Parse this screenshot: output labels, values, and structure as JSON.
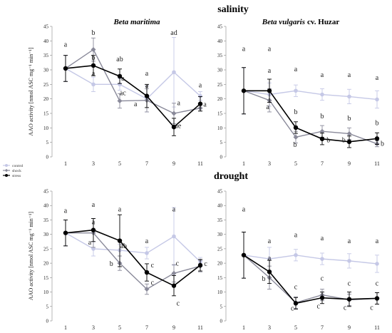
{
  "figure": {
    "sections": [
      "salinity",
      "drought"
    ]
  },
  "legend": [
    {
      "name": "control",
      "color": "#c5c8e6",
      "marker": "circle"
    },
    {
      "name": "shock",
      "color": "#8a8a9a",
      "marker": "diamond"
    },
    {
      "name": "stress",
      "color": "#000000",
      "marker": "circle"
    }
  ],
  "chart_data": [
    {
      "type": "line",
      "section": "salinity",
      "title": "Beta maritima",
      "title_roman": "",
      "ylabel": "AAO activity [nmol ASC mg⁻¹ min⁻¹]",
      "ylim": [
        0,
        45
      ],
      "yticks": [
        "0",
        "5",
        "10",
        "15",
        "20",
        "25",
        "30",
        "35",
        "40",
        "45"
      ],
      "x": [
        1,
        3,
        5,
        7,
        9,
        11
      ],
      "series": [
        {
          "name": "control",
          "values": [
            30.5,
            25,
            25,
            20,
            29.2,
            21
          ],
          "err": [
            4.5,
            2.5,
            2,
            4.5,
            12,
            1.5
          ]
        },
        {
          "name": "shock",
          "values": [
            30.5,
            37,
            19.3,
            19.5,
            15,
            16.8
          ],
          "err": [
            4.5,
            4,
            2.5,
            4,
            3.5,
            1
          ]
        },
        {
          "name": "stress",
          "values": [
            30.5,
            31.5,
            27.8,
            21,
            10.3,
            18.3
          ],
          "err": [
            4.5,
            3.5,
            2.5,
            4,
            3,
            2.5
          ]
        }
      ],
      "annotations": [
        {
          "text": "a",
          "x": 1,
          "y": 38
        },
        {
          "text": "b",
          "x": 3,
          "y": 42
        },
        {
          "text": "a",
          "x": 3,
          "y": 28
        },
        {
          "text": "b",
          "x": 3,
          "y": 33.5
        },
        {
          "text": "ab",
          "x": 5,
          "y": 33
        },
        {
          "text": "a",
          "x": 5.25,
          "y": 26.3
        },
        {
          "text": "ac",
          "x": 5.25,
          "y": 21.3
        },
        {
          "text": "a",
          "x": 7,
          "y": 28
        },
        {
          "text": "a",
          "x": 7,
          "y": 23.8
        },
        {
          "text": "a",
          "x": 6.2,
          "y": 17.5
        },
        {
          "text": "ad",
          "x": 9,
          "y": 42
        },
        {
          "text": "a",
          "x": 9.4,
          "y": 17.8
        },
        {
          "text": "ae",
          "x": 9.35,
          "y": 10
        },
        {
          "text": "a",
          "x": 11,
          "y": 24
        },
        {
          "text": "a",
          "x": 11.35,
          "y": 17.3
        }
      ]
    },
    {
      "type": "line",
      "section": "salinity",
      "title": "Beta vulgaris",
      "title_roman": "cv. Huzar",
      "ylabel": "",
      "ylim": [
        0,
        45
      ],
      "yticks": [
        "0",
        "5",
        "10",
        "15",
        "20",
        "25",
        "30",
        "35",
        "40",
        "45"
      ],
      "x": [
        1,
        3,
        5,
        7,
        9,
        11
      ],
      "series": [
        {
          "name": "control",
          "values": [
            22.8,
            21.5,
            22.8,
            21.5,
            20.8,
            19.8
          ],
          "err": [
            8,
            4,
            2,
            2,
            2.5,
            3
          ]
        },
        {
          "name": "shock",
          "values": [
            22.8,
            19.5,
            6.8,
            8.8,
            8,
            4.5
          ],
          "err": [
            8,
            4,
            2,
            2,
            2,
            1
          ]
        },
        {
          "name": "stress",
          "values": [
            22.8,
            22.8,
            10.1,
            6.2,
            5.2,
            6.3
          ],
          "err": [
            8,
            4,
            2,
            2,
            2,
            2
          ]
        }
      ],
      "annotations": [
        {
          "text": "a",
          "x": 1,
          "y": 36.5
        },
        {
          "text": "a",
          "x": 3,
          "y": 36.5
        },
        {
          "text": "a",
          "x": 3,
          "y": 29
        },
        {
          "text": "a",
          "x": 2.8,
          "y": 16.5
        },
        {
          "text": "a",
          "x": 5,
          "y": 29.5
        },
        {
          "text": "b",
          "x": 5,
          "y": 14.8
        },
        {
          "text": "b",
          "x": 4.85,
          "y": 3.5
        },
        {
          "text": "a",
          "x": 7,
          "y": 27.5
        },
        {
          "text": "b",
          "x": 7,
          "y": 13.3
        },
        {
          "text": "b",
          "x": 7.35,
          "y": 5
        },
        {
          "text": "a",
          "x": 9,
          "y": 27.5
        },
        {
          "text": "b",
          "x": 9,
          "y": 12.5
        },
        {
          "text": "b",
          "x": 8.5,
          "y": 5
        },
        {
          "text": "a",
          "x": 11,
          "y": 26.5
        },
        {
          "text": "b",
          "x": 11,
          "y": 11
        },
        {
          "text": "b",
          "x": 11.4,
          "y": 3.8
        }
      ]
    },
    {
      "type": "line",
      "section": "drought",
      "title": "",
      "title_roman": "",
      "ylabel": "AAO activity [nmol ASC mg⁻¹ min⁻¹]",
      "ylim": [
        0,
        45
      ],
      "yticks": [
        "0",
        "5",
        "10",
        "15",
        "20",
        "25",
        "30",
        "35",
        "40",
        "45"
      ],
      "x": [
        1,
        3,
        5,
        7,
        9,
        11
      ],
      "series": [
        {
          "name": "control",
          "values": [
            30.5,
            25,
            24.5,
            23.5,
            29.3,
            20.5
          ],
          "err": [
            4.5,
            2.5,
            2,
            2,
            10,
            1.5
          ]
        },
        {
          "name": "shock",
          "values": [
            30.5,
            30.5,
            20,
            11,
            16.5,
            19
          ],
          "err": [
            4.5,
            5,
            2.5,
            1.8,
            3,
            2
          ]
        },
        {
          "name": "stress",
          "values": [
            30.5,
            31.5,
            27.8,
            16.8,
            12.2,
            19.3
          ],
          "err": [
            4.5,
            4,
            9,
            3,
            3.5,
            2
          ]
        }
      ],
      "annotations": [
        {
          "text": "a",
          "x": 1,
          "y": 37.5
        },
        {
          "text": "a",
          "x": 3,
          "y": 39.5
        },
        {
          "text": "a",
          "x": 3,
          "y": 33.5
        },
        {
          "text": "a",
          "x": 2.8,
          "y": 26.5
        },
        {
          "text": "a",
          "x": 5,
          "y": 38
        },
        {
          "text": "ab",
          "x": 5.3,
          "y": 25.2
        },
        {
          "text": "b",
          "x": 4.4,
          "y": 19
        },
        {
          "text": "a",
          "x": 7,
          "y": 27
        },
        {
          "text": "c",
          "x": 7.45,
          "y": 18.5
        },
        {
          "text": "c",
          "x": 7.45,
          "y": 12.5
        },
        {
          "text": "a",
          "x": 9,
          "y": 38
        },
        {
          "text": "c",
          "x": 9.3,
          "y": 19.2
        },
        {
          "text": "c",
          "x": 9.35,
          "y": 5.3
        },
        {
          "text": "c",
          "x": 11.4,
          "y": 19
        }
      ]
    },
    {
      "type": "line",
      "section": "drought",
      "title": "",
      "title_roman": "",
      "ylabel": "",
      "ylim": [
        0,
        45
      ],
      "yticks": [
        "0",
        "5",
        "10",
        "15",
        "20",
        "25",
        "30",
        "35",
        "40",
        "45"
      ],
      "x": [
        1,
        3,
        5,
        7,
        9,
        11
      ],
      "series": [
        {
          "name": "control",
          "values": [
            22.8,
            21.5,
            22.8,
            21.5,
            20.8,
            19.8
          ],
          "err": [
            8,
            4,
            2,
            2,
            2.5,
            3
          ]
        },
        {
          "name": "shock",
          "values": [
            22.8,
            15,
            6.3,
            9,
            7.3,
            7.8
          ],
          "err": [
            8,
            4,
            2,
            2,
            2,
            2
          ]
        },
        {
          "name": "stress",
          "values": [
            22.8,
            17,
            6.1,
            8,
            7.5,
            7.8
          ],
          "err": [
            8,
            4,
            2,
            2,
            2.5,
            2
          ]
        }
      ],
      "annotations": [
        {
          "text": "a",
          "x": 1,
          "y": 38
        },
        {
          "text": "a",
          "x": 3,
          "y": 27
        },
        {
          "text": "a",
          "x": 3,
          "y": 21
        },
        {
          "text": "b",
          "x": 2.5,
          "y": 13.8
        },
        {
          "text": "a",
          "x": 5,
          "y": 29
        },
        {
          "text": "c",
          "x": 5,
          "y": 11
        },
        {
          "text": "c",
          "x": 4.65,
          "y": 3.6
        },
        {
          "text": "a",
          "x": 7,
          "y": 28
        },
        {
          "text": "c",
          "x": 7,
          "y": 14
        },
        {
          "text": "c",
          "x": 6.6,
          "y": 4.3
        },
        {
          "text": "a",
          "x": 9,
          "y": 27
        },
        {
          "text": "c",
          "x": 9,
          "y": 12.3
        },
        {
          "text": "c",
          "x": 8.6,
          "y": 3.8
        },
        {
          "text": "a",
          "x": 11,
          "y": 27
        },
        {
          "text": "c",
          "x": 11,
          "y": 12.3
        },
        {
          "text": "c",
          "x": 10.6,
          "y": 3.8
        }
      ]
    }
  ]
}
